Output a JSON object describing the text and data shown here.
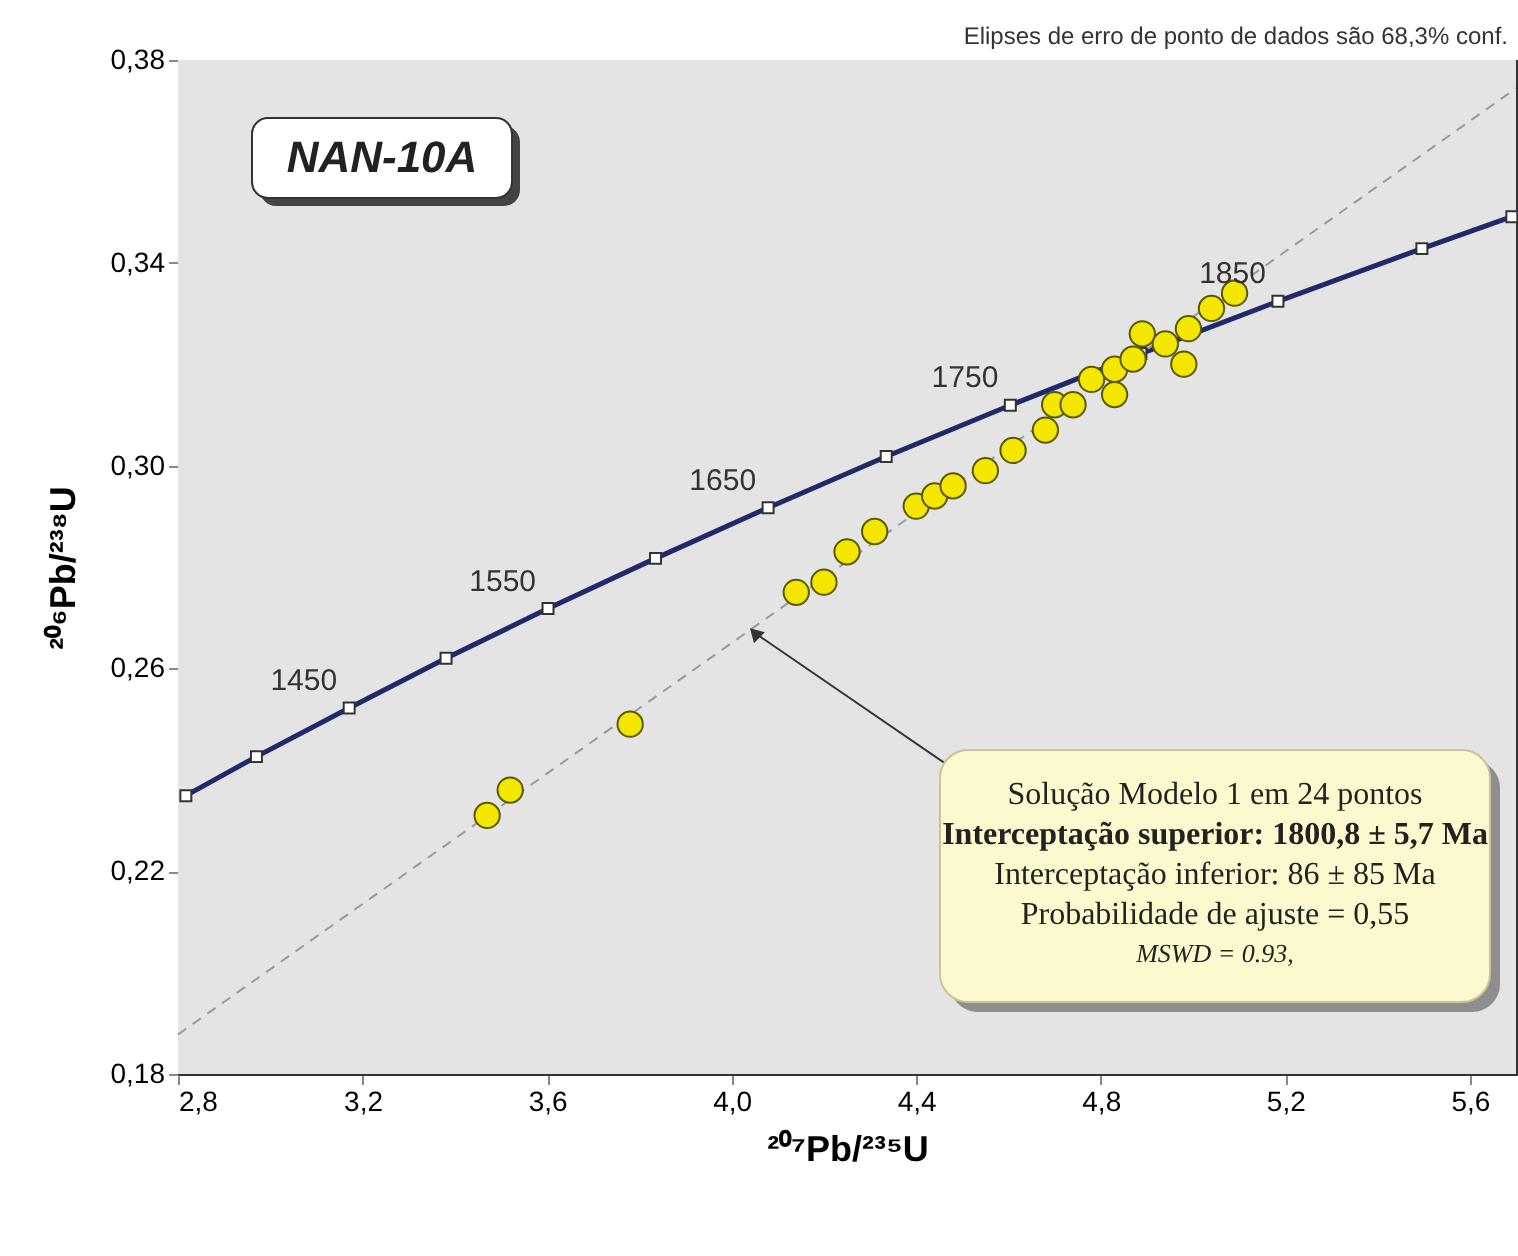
{
  "chart_data": {
    "type": "scatter",
    "title": "NAN-10A",
    "subtitle": "Elipses de erro de ponto de dados são 68,3% conf.",
    "xlabel": "²⁰⁷Pb/²³⁵U",
    "ylabel": "²⁰⁶Pb/²³⁸U",
    "xlim": [
      2.8,
      5.7
    ],
    "ylim": [
      0.18,
      0.38
    ],
    "xticks": [
      {
        "value": 2.8,
        "label": "2,8"
      },
      {
        "value": 3.2,
        "label": "3,2"
      },
      {
        "value": 3.6,
        "label": "3,6"
      },
      {
        "value": 4.0,
        "label": "4,0"
      },
      {
        "value": 4.4,
        "label": "4,4"
      },
      {
        "value": 4.8,
        "label": "4,8"
      },
      {
        "value": 5.2,
        "label": "5,2"
      },
      {
        "value": 5.6,
        "label": "5,6"
      }
    ],
    "yticks": [
      {
        "value": 0.18,
        "label": "0,18"
      },
      {
        "value": 0.22,
        "label": "0,22"
      },
      {
        "value": 0.26,
        "label": "0,26"
      },
      {
        "value": 0.3,
        "label": "0,30"
      },
      {
        "value": 0.34,
        "label": "0,34"
      },
      {
        "value": 0.38,
        "label": "0,38"
      }
    ],
    "grid": false,
    "legend": false,
    "series": [
      {
        "type": "line",
        "color": "#1f2a6b",
        "marker": "square",
        "line_style": "solid",
        "x": [
          2.817,
          2.97,
          3.171,
          3.381,
          3.602,
          3.835,
          4.079,
          4.335,
          4.604,
          4.887,
          5.184,
          5.496,
          5.691
        ],
        "values": [
          0.2349,
          0.2426,
          0.2522,
          0.262,
          0.2718,
          0.2817,
          0.2917,
          0.3018,
          0.3119,
          0.3221,
          0.3324,
          0.3428,
          0.3491
        ]
      },
      {
        "type": "line",
        "color": "#9a9a9a",
        "marker": "none",
        "line_style": "dashed",
        "x": [
          2.8,
          5.7
        ],
        "values": [
          0.1878,
          0.3744
        ]
      },
      {
        "type": "scatter",
        "color": "#f5e600",
        "marker": "circle",
        "x": [
          3.47,
          3.52,
          3.78,
          4.14,
          4.2,
          4.25,
          4.31,
          4.4,
          4.44,
          4.48,
          4.55,
          4.61,
          4.68,
          4.7,
          4.74,
          4.78,
          4.83,
          4.83,
          4.87,
          4.89,
          4.94,
          4.98,
          4.99,
          5.04,
          5.09
        ],
        "values": [
          0.231,
          0.236,
          0.249,
          0.275,
          0.277,
          0.283,
          0.287,
          0.292,
          0.294,
          0.296,
          0.299,
          0.303,
          0.307,
          0.312,
          0.312,
          0.317,
          0.314,
          0.319,
          0.321,
          0.326,
          0.324,
          0.32,
          0.327,
          0.331,
          0.334
        ]
      }
    ],
    "annotations": [
      {
        "text": "1450",
        "x": 3.171,
        "y": 0.2522
      },
      {
        "text": "1550",
        "x": 3.602,
        "y": 0.2718
      },
      {
        "text": "1650",
        "x": 4.079,
        "y": 0.2917
      },
      {
        "text": "1750",
        "x": 4.604,
        "y": 0.3119
      },
      {
        "text": "1850",
        "x": 5.184,
        "y": 0.3324
      },
      {
        "text": "Solução Modelo 1 em 24 pontos",
        "x": 4.05,
        "y": 0.267
      },
      "Interceptação superior: 1800,8 ± 5,7 Ma",
      "Interceptação inferior: 86 ± 85 Ma",
      "Probabilidade de ajuste = 0,55",
      "MSWD = 0.93,"
    ]
  }
}
